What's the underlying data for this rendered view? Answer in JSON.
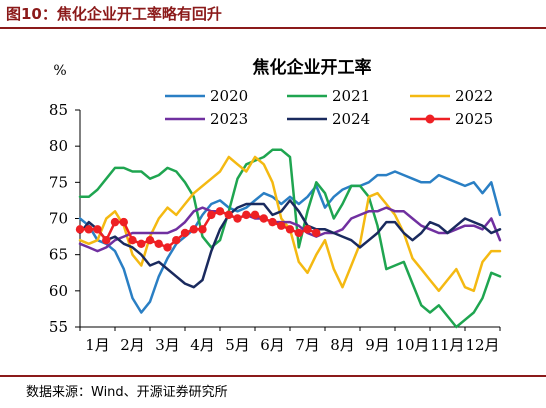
{
  "figure_title": "图10：焦化企业开工率略有回升",
  "source_text": "数据来源：Wind、开源证券研究所",
  "chart_data": {
    "type": "line",
    "title": "焦化企业开工率",
    "ylabel": "%",
    "ylim": [
      55,
      85
    ],
    "yticks": [
      55,
      60,
      65,
      70,
      75,
      80,
      85
    ],
    "x_range": [
      1,
      13
    ],
    "month_labels": [
      "1月",
      "2月",
      "3月",
      "4月",
      "5月",
      "6月",
      "7月",
      "8月",
      "9月",
      "10月",
      "11月",
      "12月"
    ],
    "grid": false,
    "legend_position": "top",
    "series": [
      {
        "name": "2020",
        "color": "#2a7fc4",
        "x": [
          1.0,
          1.25,
          1.5,
          1.75,
          2.0,
          2.25,
          2.5,
          2.75,
          3.0,
          3.25,
          3.5,
          3.75,
          4.0,
          4.25,
          4.5,
          4.75,
          5.0,
          5.25,
          5.5,
          5.75,
          6.0,
          6.25,
          6.5,
          6.75,
          7.0,
          7.25,
          7.5,
          7.75,
          8.0,
          8.25,
          8.5,
          8.75,
          9.0,
          9.25,
          9.5,
          9.75,
          10.0,
          10.25,
          10.5,
          10.75,
          11.0,
          11.25,
          11.5,
          11.75,
          12.0,
          12.25,
          12.5,
          12.75,
          13.0
        ],
        "values": [
          70.0,
          69.0,
          67.0,
          66.5,
          65.5,
          63.0,
          59.0,
          57.0,
          58.5,
          62.0,
          64.5,
          66.5,
          67.5,
          68.5,
          70.5,
          72.0,
          72.5,
          71.5,
          71.0,
          71.5,
          72.5,
          73.5,
          73.0,
          72.0,
          73.0,
          72.0,
          73.0,
          74.5,
          71.5,
          73.0,
          74.0,
          74.5,
          74.5,
          75.0,
          76.0,
          76.0,
          76.5,
          76.0,
          75.5,
          75.0,
          75.0,
          76.0,
          75.5,
          75.0,
          74.5,
          75.0,
          73.5,
          75.0,
          70.5
        ]
      },
      {
        "name": "2021",
        "color": "#1fa550",
        "x": [
          1.0,
          1.25,
          1.5,
          1.75,
          2.0,
          2.25,
          2.5,
          2.75,
          3.0,
          3.25,
          3.5,
          3.75,
          4.0,
          4.25,
          4.5,
          4.75,
          5.0,
          5.25,
          5.5,
          5.75,
          6.0,
          6.25,
          6.5,
          6.75,
          7.0,
          7.25,
          7.5,
          7.75,
          8.0,
          8.25,
          8.5,
          8.75,
          9.0,
          9.25,
          9.5,
          9.75,
          10.0,
          10.25,
          10.5,
          10.75,
          11.0,
          11.25,
          11.5,
          11.75,
          12.0,
          12.25,
          12.5,
          12.75,
          13.0
        ],
        "values": [
          73.0,
          73.0,
          74.0,
          75.5,
          77.0,
          77.0,
          76.5,
          76.5,
          75.5,
          76.0,
          77.0,
          76.5,
          75.0,
          73.0,
          67.5,
          66.0,
          67.0,
          71.0,
          75.5,
          77.5,
          78.0,
          78.5,
          79.5,
          79.5,
          78.5,
          66.0,
          71.0,
          75.0,
          73.5,
          70.0,
          72.0,
          74.5,
          74.5,
          73.0,
          69.0,
          63.0,
          63.5,
          64.0,
          61.0,
          58.0,
          57.0,
          58.0,
          56.5,
          55.0,
          56.0,
          57.0,
          59.0,
          62.5,
          62.0
        ]
      },
      {
        "name": "2022",
        "color": "#f4b912",
        "x": [
          1.0,
          1.25,
          1.5,
          1.75,
          2.0,
          2.25,
          2.5,
          2.75,
          3.0,
          3.25,
          3.5,
          3.75,
          4.0,
          4.25,
          4.5,
          4.75,
          5.0,
          5.25,
          5.5,
          5.75,
          6.0,
          6.25,
          6.5,
          6.75,
          7.0,
          7.25,
          7.5,
          7.75,
          8.0,
          8.25,
          8.5,
          8.75,
          9.0,
          9.25,
          9.5,
          9.75,
          10.0,
          10.25,
          10.5,
          10.75,
          11.0,
          11.25,
          11.5,
          11.75,
          12.0,
          12.25,
          12.5,
          12.75,
          13.0
        ],
        "values": [
          67.0,
          66.5,
          67.0,
          70.0,
          71.0,
          69.0,
          65.0,
          63.5,
          67.5,
          70.0,
          71.5,
          70.5,
          72.0,
          73.5,
          74.5,
          75.5,
          76.5,
          78.5,
          77.5,
          76.5,
          78.5,
          77.5,
          75.0,
          70.0,
          68.5,
          64.0,
          62.5,
          65.0,
          67.0,
          63.0,
          60.5,
          63.5,
          66.5,
          73.0,
          73.5,
          72.0,
          70.5,
          68.0,
          64.5,
          63.0,
          61.5,
          60.0,
          61.5,
          63.0,
          60.5,
          60.0,
          64.0,
          65.5,
          65.5
        ]
      },
      {
        "name": "2023",
        "color": "#7030a0",
        "x": [
          1.0,
          1.25,
          1.5,
          1.75,
          2.0,
          2.25,
          2.5,
          2.75,
          3.0,
          3.25,
          3.5,
          3.75,
          4.0,
          4.25,
          4.5,
          4.75,
          5.0,
          5.25,
          5.5,
          5.75,
          6.0,
          6.25,
          6.5,
          6.75,
          7.0,
          7.25,
          7.5,
          7.75,
          8.0,
          8.25,
          8.5,
          8.75,
          9.0,
          9.25,
          9.5,
          9.75,
          10.0,
          10.25,
          10.5,
          10.75,
          11.0,
          11.25,
          11.5,
          11.75,
          12.0,
          12.25,
          12.5,
          12.75,
          13.0
        ],
        "values": [
          66.5,
          66.0,
          65.5,
          66.0,
          67.0,
          67.5,
          68.0,
          68.0,
          68.0,
          68.0,
          68.0,
          68.5,
          69.5,
          71.0,
          71.5,
          71.0,
          71.0,
          70.5,
          70.0,
          70.5,
          70.0,
          70.0,
          69.5,
          69.5,
          69.5,
          69.0,
          68.0,
          67.5,
          68.0,
          68.0,
          68.5,
          70.0,
          70.5,
          71.0,
          71.0,
          71.5,
          71.0,
          71.0,
          70.0,
          69.0,
          68.5,
          68.0,
          68.0,
          68.5,
          69.0,
          69.0,
          68.5,
          70.0,
          67.0
        ]
      },
      {
        "name": "2024",
        "color": "#1a2a5e",
        "x": [
          1.0,
          1.25,
          1.5,
          1.75,
          2.0,
          2.25,
          2.5,
          2.75,
          3.0,
          3.25,
          3.5,
          3.75,
          4.0,
          4.25,
          4.5,
          4.75,
          5.0,
          5.25,
          5.5,
          5.75,
          6.0,
          6.25,
          6.5,
          6.75,
          7.0,
          7.25,
          7.5,
          7.75,
          8.0,
          8.25,
          8.5,
          8.75,
          9.0,
          9.25,
          9.5,
          9.75,
          10.0,
          10.25,
          10.5,
          10.75,
          11.0,
          11.25,
          11.5,
          11.75,
          12.0,
          12.25,
          12.5,
          12.75,
          13.0
        ],
        "values": [
          68.0,
          69.5,
          68.5,
          67.0,
          67.5,
          66.5,
          66.0,
          65.0,
          63.5,
          64.0,
          63.0,
          62.0,
          61.0,
          60.5,
          61.5,
          65.5,
          68.5,
          70.5,
          71.5,
          72.0,
          72.0,
          72.0,
          70.5,
          71.0,
          72.5,
          71.0,
          69.0,
          68.5,
          68.5,
          68.0,
          67.5,
          67.0,
          66.0,
          67.0,
          68.0,
          69.5,
          69.5,
          68.0,
          67.0,
          68.0,
          69.5,
          69.0,
          68.0,
          69.0,
          70.0,
          69.5,
          69.0,
          68.0,
          68.5
        ]
      },
      {
        "name": "2025",
        "color": "#ee2024",
        "x": [
          1.0,
          1.25,
          1.5,
          1.75,
          2.0,
          2.25,
          2.5,
          2.75,
          3.0,
          3.25,
          3.5,
          3.75,
          4.0,
          4.25,
          4.5,
          4.75,
          5.0,
          5.25,
          5.5,
          5.75,
          6.0,
          6.25,
          6.5,
          6.75,
          7.0,
          7.25,
          7.5,
          7.75
        ],
        "values": [
          68.5,
          68.5,
          68.5,
          67.0,
          69.5,
          69.5,
          67.0,
          66.5,
          67.0,
          66.5,
          66.0,
          67.0,
          68.0,
          68.5,
          68.5,
          70.5,
          71.0,
          70.5,
          70.0,
          70.5,
          70.5,
          70.0,
          69.5,
          69.0,
          68.5,
          68.0,
          68.5,
          68.0
        ]
      }
    ]
  }
}
